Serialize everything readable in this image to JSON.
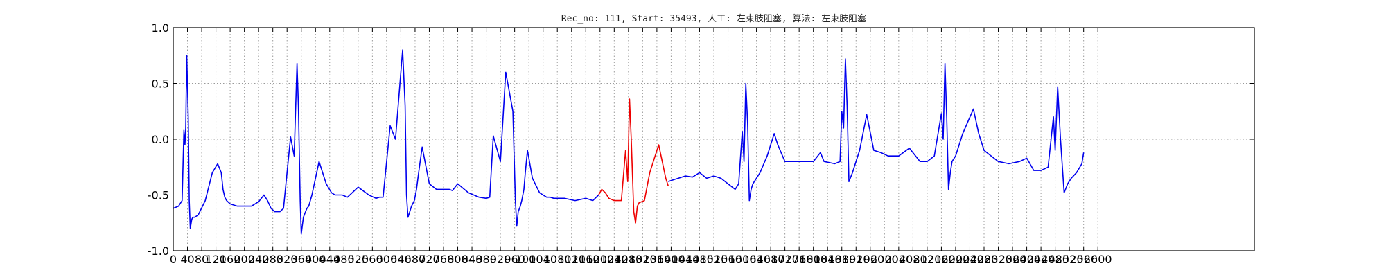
{
  "chart_data": {
    "type": "line",
    "title": "Rec_no: 111, Start: 35493, 人工: 左束肢阻塞, 算法: 左束肢阻塞",
    "xlabel": "",
    "ylabel": "",
    "xlim": [
      0,
      3040
    ],
    "ylim": [
      -1.0,
      1.0
    ],
    "grid": true,
    "x_ticks": [
      0,
      40,
      80,
      120,
      160,
      200,
      240,
      280,
      320,
      360,
      400,
      440,
      480,
      520,
      560,
      600,
      640,
      680,
      720,
      760,
      800,
      840,
      880,
      920,
      960,
      1000,
      1040,
      1080,
      1120,
      1160,
      1200,
      1240,
      1280,
      1320,
      1360,
      1400,
      1440,
      1480,
      1520,
      1560,
      1600,
      1640,
      1680,
      1720,
      1760,
      1800,
      1840,
      1880,
      1920,
      1960,
      2000,
      2040,
      2080,
      2120,
      2160,
      2200,
      2240,
      2280,
      2320,
      2360,
      2400,
      2440,
      2480,
      2520,
      2560,
      2600
    ],
    "y_ticks": [
      "-1.0",
      "-0.5",
      "0.0",
      "0.5",
      "1.0"
    ],
    "colors": {
      "normal": "#0000ee",
      "highlight": "#ee0000",
      "axis": "#000000",
      "grid": "#999999"
    },
    "series": [
      {
        "color": "#0000ee",
        "x": [
          0,
          15,
          25,
          30,
          33,
          35,
          38,
          42,
          45,
          48,
          52,
          55,
          60,
          70,
          90,
          110,
          125,
          135,
          140,
          145,
          150,
          160,
          180,
          220,
          240,
          255,
          265,
          275,
          285,
          290,
          300,
          310,
          330,
          340,
          348,
          352,
          357,
          360,
          366,
          372,
          376,
          381,
          390,
          410,
          430,
          445,
          455,
          460,
          466,
          475,
          490,
          520,
          550,
          570,
          580,
          590,
          610,
          625,
          645,
          652,
          656,
          660,
          665,
          670,
          678,
          684,
          690,
          700,
          720,
          740,
          755,
          765,
          770,
          776,
          785,
          800,
          830,
          860,
          880,
          890,
          900,
          920,
          935,
          955,
          962,
          966,
          970,
          976,
          980,
          986,
          990,
          996,
          1010,
          1030,
          1040,
          1050,
          1060,
          1070,
          1080,
          1100,
          1130,
          1160,
          1180,
          1196
        ],
        "y": [
          -0.62,
          -0.6,
          -0.55,
          0.08,
          -0.05,
          0.1,
          0.75,
          0.2,
          -0.55,
          -0.8,
          -0.72,
          -0.7,
          -0.7,
          -0.68,
          -0.55,
          -0.3,
          -0.22,
          -0.3,
          -0.45,
          -0.52,
          -0.55,
          -0.58,
          -0.6,
          -0.6,
          -0.56,
          -0.5,
          -0.55,
          -0.62,
          -0.65,
          -0.65,
          -0.65,
          -0.62,
          0.02,
          -0.15,
          0.68,
          0.3,
          -0.55,
          -0.85,
          -0.7,
          -0.65,
          -0.62,
          -0.6,
          -0.5,
          -0.2,
          -0.4,
          -0.48,
          -0.5,
          -0.5,
          -0.5,
          -0.5,
          -0.52,
          -0.43,
          -0.5,
          -0.53,
          -0.52,
          -0.52,
          0.12,
          0.0,
          0.8,
          0.3,
          -0.5,
          -0.7,
          -0.65,
          -0.6,
          -0.55,
          -0.45,
          -0.3,
          -0.07,
          -0.4,
          -0.45,
          -0.45,
          -0.45,
          -0.45,
          -0.45,
          -0.46,
          -0.4,
          -0.48,
          -0.52,
          -0.53,
          -0.52,
          0.03,
          -0.2,
          0.6,
          0.25,
          -0.55,
          -0.78,
          -0.65,
          -0.6,
          -0.55,
          -0.45,
          -0.3,
          -0.1,
          -0.35,
          -0.48,
          -0.5,
          -0.52,
          -0.52,
          -0.53,
          -0.53,
          -0.53,
          -0.55,
          -0.53,
          -0.55,
          -0.5
        ]
      },
      {
        "color": "#ee0000",
        "x": [
          1196,
          1205,
          1215,
          1225,
          1240,
          1260,
          1272,
          1278,
          1283,
          1288,
          1295,
          1300,
          1305,
          1310,
          1325,
          1340,
          1355,
          1365,
          1375,
          1385,
          1392
        ],
        "y": [
          -0.5,
          -0.45,
          -0.48,
          -0.53,
          -0.55,
          -0.55,
          -0.1,
          -0.38,
          0.36,
          0.0,
          -0.65,
          -0.75,
          -0.6,
          -0.57,
          -0.55,
          -0.3,
          -0.15,
          -0.05,
          -0.2,
          -0.35,
          -0.42
        ]
      },
      {
        "color": "#0000ee",
        "x": [
          1392,
          1400,
          1420,
          1440,
          1460,
          1480,
          1500,
          1520,
          1540,
          1560,
          1580,
          1590,
          1600,
          1605,
          1610,
          1615,
          1620,
          1625,
          1630,
          1650,
          1670,
          1690,
          1700,
          1720,
          1750,
          1780,
          1800,
          1820,
          1830,
          1860,
          1875,
          1880,
          1885,
          1890,
          1895,
          1900,
          1910,
          1930,
          1950,
          1970,
          1990,
          2010,
          2040,
          2070,
          2100,
          2120,
          2140,
          2160,
          2165,
          2170,
          2175,
          2180,
          2185,
          2190,
          2200,
          2220,
          2250,
          2265,
          2280,
          2300,
          2320,
          2350,
          2380,
          2400,
          2420,
          2440,
          2460,
          2475,
          2480,
          2487,
          2495,
          2505,
          2515,
          2525,
          2540,
          2555,
          2560
        ],
        "y": [
          -0.38,
          -0.37,
          -0.35,
          -0.33,
          -0.34,
          -0.3,
          -0.35,
          -0.33,
          -0.35,
          -0.4,
          -0.45,
          -0.4,
          0.07,
          -0.2,
          0.5,
          0.15,
          -0.55,
          -0.45,
          -0.4,
          -0.3,
          -0.15,
          0.05,
          -0.05,
          -0.2,
          -0.2,
          -0.2,
          -0.2,
          -0.12,
          -0.2,
          -0.22,
          -0.2,
          0.25,
          0.1,
          0.72,
          0.3,
          -0.38,
          -0.3,
          -0.1,
          0.22,
          -0.1,
          -0.12,
          -0.15,
          -0.15,
          -0.08,
          -0.2,
          -0.2,
          -0.15,
          0.23,
          0.0,
          0.68,
          0.2,
          -0.45,
          -0.3,
          -0.2,
          -0.15,
          0.05,
          0.27,
          0.05,
          -0.1,
          -0.15,
          -0.2,
          -0.22,
          -0.2,
          -0.17,
          -0.28,
          -0.28,
          -0.25,
          0.2,
          -0.1,
          0.47,
          0.0,
          -0.48,
          -0.4,
          -0.35,
          -0.3,
          -0.22,
          -0.12
        ]
      }
    ]
  }
}
